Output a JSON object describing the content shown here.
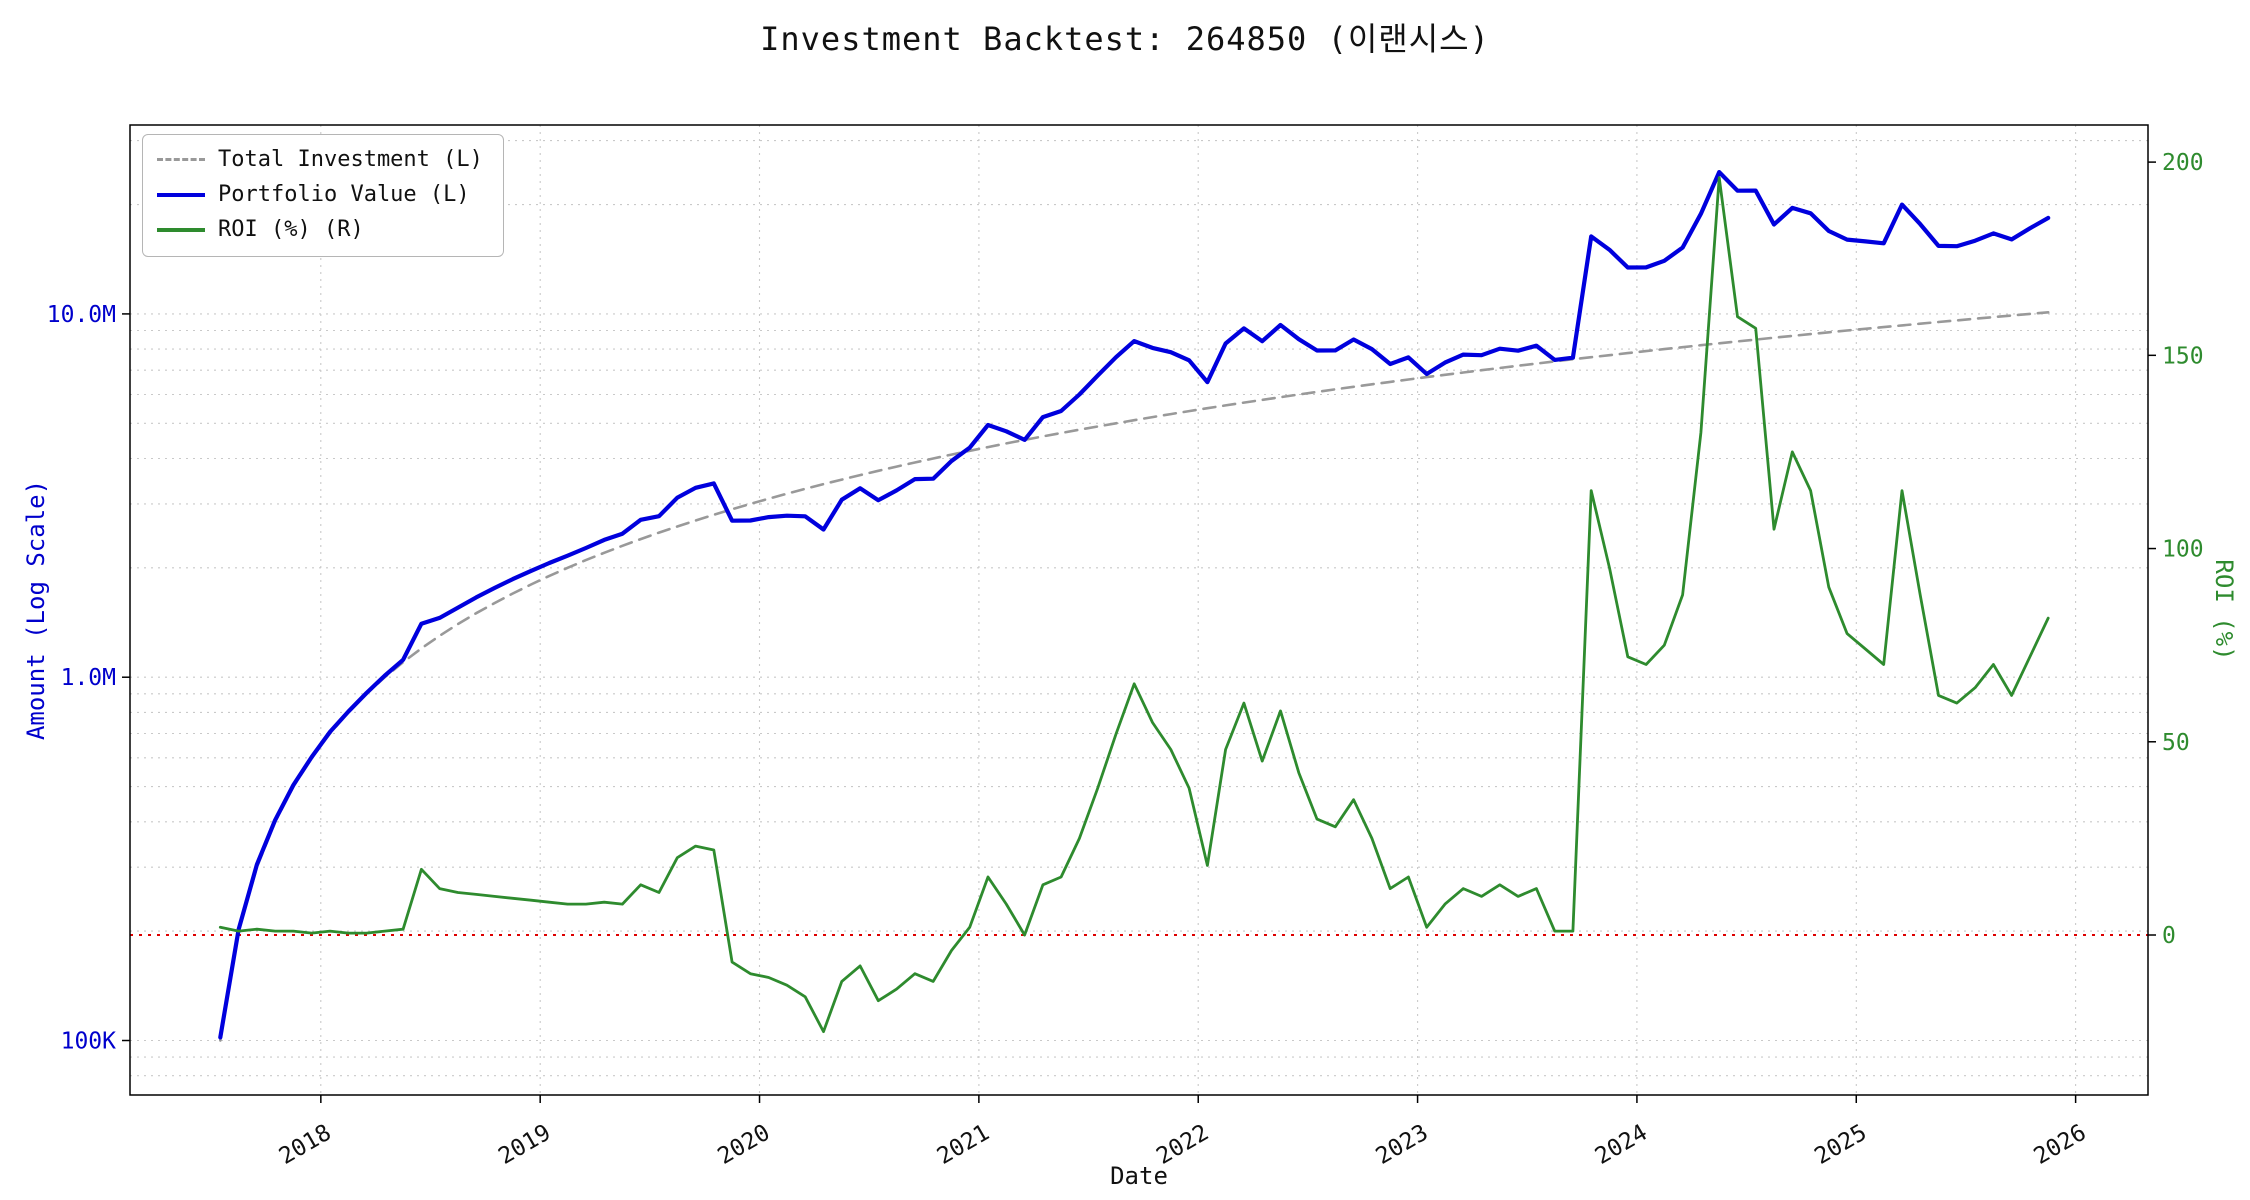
{
  "title": "Investment Backtest: 264850 (이랜시스)",
  "axes": {
    "x_label": "Date",
    "y_left_label": "Amount (Log Scale)",
    "y_right_label": "ROI (%)"
  },
  "colors": {
    "investment": "#999999",
    "portfolio": "#0000dd",
    "roi": "#2e8b2e",
    "zero_line": "#dd0000",
    "grid": "#c9c9c9",
    "frame": "#000000",
    "left_axis_text": "#0000cc",
    "right_axis_text": "#2e8b2e",
    "x_tick_text": "#111111"
  },
  "legend": [
    {
      "label": "Total Investment (L)",
      "series": "investment",
      "style": "dashed",
      "color": "#999999"
    },
    {
      "label": "Portfolio Value (L)",
      "series": "portfolio",
      "style": "solid",
      "color": "#0000dd"
    },
    {
      "label": "ROI (%) (R)",
      "series": "roi",
      "style": "solid",
      "color": "#2e8b2e"
    }
  ],
  "chart_data": {
    "type": "line",
    "title": "Investment Backtest: 264850 (이랜시스)",
    "grid": true,
    "legend_position": "upper left",
    "x_start": "2017-07",
    "x_frequency": "monthly",
    "x_axis": {
      "range_decimal_years": [
        2017.13,
        2026.33
      ],
      "ticks": [
        {
          "v": 2018,
          "label": "2018"
        },
        {
          "v": 2019,
          "label": "2019"
        },
        {
          "v": 2020,
          "label": "2020"
        },
        {
          "v": 2021,
          "label": "2021"
        },
        {
          "v": 2022,
          "label": "2022"
        },
        {
          "v": 2023,
          "label": "2023"
        },
        {
          "v": 2024,
          "label": "2024"
        },
        {
          "v": 2025,
          "label": "2025"
        },
        {
          "v": 2026,
          "label": "2026"
        }
      ]
    },
    "y_left_axis": {
      "scale": "log",
      "unit": "amount (millions)",
      "range_log10_millions": [
        -1.15,
        1.52
      ],
      "ticks": [
        {
          "v": 0.1,
          "label": "100K"
        },
        {
          "v": 1,
          "label": "1.0M"
        },
        {
          "v": 10,
          "label": "10.0M"
        }
      ]
    },
    "y_right_axis": {
      "unit": "percent",
      "range": [
        -41.4,
        209.6
      ],
      "ticks": [
        {
          "v": 0,
          "label": "0"
        },
        {
          "v": 50,
          "label": "50"
        },
        {
          "v": 100,
          "label": "100"
        },
        {
          "v": 150,
          "label": "150"
        },
        {
          "v": 200,
          "label": "200"
        }
      ]
    },
    "zero_line": {
      "axis": "right",
      "value": 0
    },
    "series": [
      {
        "name": "Total Investment (L)",
        "key": "total-investment",
        "axis": "left",
        "unit": "millions",
        "color": "#999999",
        "width": 2.6,
        "dash": "12 8",
        "values": [
          0.1,
          0.2,
          0.3,
          0.4,
          0.5,
          0.6,
          0.7,
          0.8,
          0.9,
          1.0,
          1.1,
          1.2,
          1.3,
          1.4,
          1.5,
          1.6,
          1.7,
          1.8,
          1.9,
          2.0,
          2.1,
          2.2,
          2.3,
          2.4,
          2.5,
          2.6,
          2.7,
          2.8,
          2.9,
          3.0,
          3.1,
          3.2,
          3.3,
          3.4,
          3.5,
          3.6,
          3.7,
          3.8,
          3.9,
          4.0,
          4.1,
          4.2,
          4.3,
          4.4,
          4.5,
          4.6,
          4.7,
          4.8,
          4.9,
          5.0,
          5.1,
          5.2,
          5.3,
          5.4,
          5.5,
          5.6,
          5.7,
          5.8,
          5.9,
          6.0,
          6.1,
          6.2,
          6.3,
          6.4,
          6.5,
          6.6,
          6.7,
          6.8,
          6.9,
          7.0,
          7.1,
          7.2,
          7.3,
          7.4,
          7.5,
          7.6,
          7.7,
          7.8,
          7.9,
          8.0,
          8.1,
          8.2,
          8.3,
          8.4,
          8.5,
          8.6,
          8.7,
          8.8,
          8.9,
          9.0,
          9.1,
          9.2,
          9.3,
          9.4,
          9.5,
          9.6,
          9.7,
          9.8,
          9.9,
          10.0,
          10.1
        ]
      },
      {
        "name": "Portfolio Value (L)",
        "key": "portfolio-value",
        "axis": "left",
        "unit": "millions",
        "color": "#0000dd",
        "width": 4.2,
        "dash": "",
        "values": [
          0.102,
          0.202,
          0.305,
          0.404,
          0.505,
          0.603,
          0.707,
          0.804,
          0.905,
          1.01,
          1.117,
          1.404,
          1.456,
          1.554,
          1.658,
          1.76,
          1.862,
          1.962,
          2.062,
          2.16,
          2.268,
          2.387,
          2.484,
          2.712,
          2.775,
          3.12,
          3.321,
          3.416,
          2.697,
          2.7,
          2.759,
          2.784,
          2.772,
          2.55,
          3.08,
          3.312,
          3.071,
          3.268,
          3.51,
          3.52,
          3.936,
          4.284,
          4.945,
          4.752,
          4.5,
          5.198,
          5.405,
          6.0,
          6.762,
          7.6,
          8.415,
          8.06,
          7.844,
          7.452,
          6.49,
          8.288,
          9.12,
          8.41,
          9.322,
          8.52,
          7.93,
          7.936,
          8.505,
          8.0,
          7.28,
          7.59,
          6.834,
          7.344,
          7.728,
          7.7,
          8.023,
          7.92,
          8.176,
          7.474,
          7.575,
          16.34,
          15.015,
          13.416,
          13.43,
          14.0,
          15.228,
          18.86,
          24.568,
          21.84,
          21.845,
          17.63,
          19.575,
          18.92,
          16.91,
          16.02,
          15.834,
          15.64,
          19.995,
          17.672,
          15.39,
          15.36,
          15.908,
          16.66,
          16.038,
          17.2,
          18.382
        ]
      },
      {
        "name": "ROI (%) (R)",
        "key": "roi",
        "axis": "right",
        "unit": "%",
        "color": "#2e8b2e",
        "width": 2.8,
        "dash": "",
        "values": [
          2,
          1,
          1.5,
          1,
          1,
          0.5,
          1,
          0.5,
          0.5,
          1,
          1.5,
          17,
          12,
          11,
          10.5,
          10,
          9.5,
          9,
          8.5,
          8,
          8,
          8.5,
          8,
          13,
          11,
          20,
          23,
          22,
          -7,
          -10,
          -11,
          -13,
          -16,
          -25,
          -12,
          -8,
          -17,
          -14,
          -10,
          -12,
          -4,
          2,
          15,
          8,
          0,
          13,
          15,
          25,
          38,
          52,
          65,
          55,
          48,
          38,
          18,
          48,
          60,
          45,
          58,
          42,
          30,
          28,
          35,
          25,
          12,
          15,
          2,
          8,
          12,
          10,
          13,
          10,
          12,
          1,
          1,
          115,
          95,
          72,
          70,
          75,
          88,
          130,
          196,
          160,
          157,
          105,
          125,
          115,
          90,
          78,
          74,
          70,
          115,
          88,
          62,
          60,
          64,
          70,
          62,
          72,
          82
        ]
      }
    ]
  }
}
